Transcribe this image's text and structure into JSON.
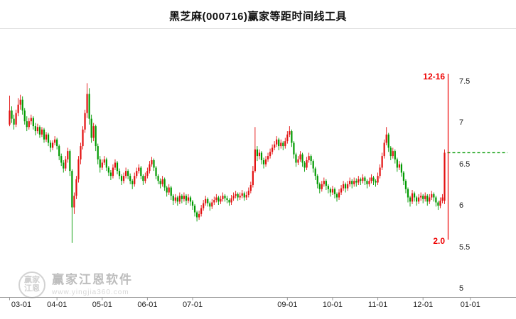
{
  "title": "黑芝麻(000716)赢家等距时间线工具",
  "watermark": {
    "brand": "赢家江恩软件",
    "url": "www.yingjia360.com",
    "logo_line1": "赢家",
    "logo_line2": "江恩"
  },
  "annotations": {
    "date_label": "12-16",
    "value_label": "2.0",
    "marker_color": "#ee0000",
    "target_line_color": "#009900",
    "target_line_value": 6.64
  },
  "colors": {
    "up": "#e31010",
    "down": "#009a00",
    "axis_line": "#9a9a9a",
    "tick_text": "#222222"
  },
  "chart_data": {
    "type": "candlestick",
    "title": "黑芝麻(000716)赢家等距时间线工具",
    "ylim": [
      5,
      7.6
    ],
    "y_ticks": [
      7.5,
      7,
      6.5,
      6,
      5.5,
      5
    ],
    "y_tick_labels": [
      "7.5",
      "7",
      "6.5",
      "6",
      "5.5",
      "5"
    ],
    "x_tick_labels": [
      "03-01",
      "04-01",
      "05-01",
      "06-01",
      "07-01",
      "09-01",
      "10-01",
      "11-01",
      "12-01",
      "01-01"
    ],
    "x_tick_day_index": [
      0,
      22,
      43,
      64,
      85,
      129,
      150,
      171,
      192,
      214
    ],
    "last_candle_date": "12-16",
    "marker_line": {
      "date": "12-16",
      "bottom_label": "2.0"
    },
    "reference_line": {
      "value": 6.64,
      "style": "dashed",
      "color": "#009900"
    },
    "candles": [
      [
        6.98,
        7.33,
        6.96,
        7.15
      ],
      [
        7.15,
        7.2,
        7.0,
        7.05
      ],
      [
        7.05,
        7.1,
        6.92,
        6.98
      ],
      [
        6.98,
        7.16,
        6.95,
        7.12
      ],
      [
        7.12,
        7.3,
        7.08,
        7.22
      ],
      [
        7.22,
        7.34,
        7.16,
        7.28
      ],
      [
        7.28,
        7.32,
        7.1,
        7.15
      ],
      [
        7.15,
        7.18,
        6.98,
        7.02
      ],
      [
        7.02,
        7.08,
        6.9,
        6.95
      ],
      [
        6.95,
        7.06,
        6.92,
        7.02
      ],
      [
        7.02,
        7.1,
        6.98,
        7.06
      ],
      [
        7.06,
        7.08,
        6.92,
        6.96
      ],
      [
        6.96,
        7.0,
        6.85,
        6.9
      ],
      [
        6.9,
        6.99,
        6.87,
        6.95
      ],
      [
        6.95,
        6.97,
        6.82,
        6.86
      ],
      [
        6.86,
        6.95,
        6.83,
        6.92
      ],
      [
        6.92,
        6.94,
        6.76,
        6.8
      ],
      [
        6.8,
        6.89,
        6.77,
        6.86
      ],
      [
        6.86,
        6.88,
        6.72,
        6.76
      ],
      [
        6.76,
        6.79,
        6.65,
        6.7
      ],
      [
        6.7,
        6.79,
        6.67,
        6.76
      ],
      [
        6.76,
        6.84,
        6.73,
        6.8
      ],
      [
        6.8,
        6.82,
        6.68,
        6.72
      ],
      [
        6.72,
        6.74,
        6.55,
        6.6
      ],
      [
        6.6,
        6.63,
        6.48,
        6.52
      ],
      [
        6.52,
        6.55,
        6.4,
        6.45
      ],
      [
        6.45,
        6.6,
        6.42,
        6.56
      ],
      [
        6.56,
        6.7,
        6.52,
        6.66
      ],
      [
        6.66,
        6.68,
        6.36,
        6.42
      ],
      [
        6.42,
        6.44,
        5.55,
        5.98
      ],
      [
        5.98,
        6.16,
        5.9,
        6.12
      ],
      [
        6.12,
        6.36,
        6.08,
        6.32
      ],
      [
        6.32,
        6.6,
        6.28,
        6.56
      ],
      [
        6.56,
        6.76,
        6.5,
        6.72
      ],
      [
        6.72,
        6.96,
        6.68,
        6.92
      ],
      [
        6.92,
        7.16,
        6.88,
        7.12
      ],
      [
        7.12,
        7.48,
        7.06,
        7.35
      ],
      [
        7.35,
        7.42,
        6.98,
        7.05
      ],
      [
        7.05,
        7.1,
        6.76,
        6.82
      ],
      [
        6.82,
        7.0,
        6.78,
        6.96
      ],
      [
        6.96,
        6.98,
        6.66,
        6.72
      ],
      [
        6.72,
        6.75,
        6.5,
        6.56
      ],
      [
        6.56,
        6.6,
        6.4,
        6.46
      ],
      [
        6.46,
        6.56,
        6.43,
        6.52
      ],
      [
        6.52,
        6.6,
        6.49,
        6.56
      ],
      [
        6.56,
        6.58,
        6.42,
        6.46
      ],
      [
        6.46,
        6.48,
        6.36,
        6.4
      ],
      [
        6.4,
        6.43,
        6.31,
        6.36
      ],
      [
        6.36,
        6.5,
        6.33,
        6.46
      ],
      [
        6.46,
        6.56,
        6.43,
        6.52
      ],
      [
        6.52,
        6.54,
        6.38,
        6.42
      ],
      [
        6.42,
        6.45,
        6.32,
        6.36
      ],
      [
        6.36,
        6.38,
        6.25,
        6.3
      ],
      [
        6.3,
        6.4,
        6.27,
        6.36
      ],
      [
        6.36,
        6.46,
        6.33,
        6.42
      ],
      [
        6.42,
        6.44,
        6.32,
        6.36
      ],
      [
        6.36,
        6.39,
        6.26,
        6.3
      ],
      [
        6.3,
        6.32,
        6.2,
        6.26
      ],
      [
        6.26,
        6.4,
        6.23,
        6.36
      ],
      [
        6.36,
        6.46,
        6.33,
        6.42
      ],
      [
        6.42,
        6.5,
        6.39,
        6.46
      ],
      [
        6.46,
        6.48,
        6.32,
        6.36
      ],
      [
        6.36,
        6.38,
        6.25,
        6.3
      ],
      [
        6.3,
        6.4,
        6.27,
        6.36
      ],
      [
        6.36,
        6.46,
        6.33,
        6.42
      ],
      [
        6.42,
        6.54,
        6.39,
        6.5
      ],
      [
        6.5,
        6.59,
        6.47,
        6.55
      ],
      [
        6.55,
        6.57,
        6.42,
        6.46
      ],
      [
        6.46,
        6.48,
        6.32,
        6.36
      ],
      [
        6.36,
        6.38,
        6.26,
        6.3
      ],
      [
        6.3,
        6.33,
        6.21,
        6.26
      ],
      [
        6.26,
        6.36,
        6.23,
        6.32
      ],
      [
        6.32,
        6.34,
        6.18,
        6.22
      ],
      [
        6.22,
        6.24,
        6.11,
        6.16
      ],
      [
        6.16,
        6.26,
        6.13,
        6.22
      ],
      [
        6.22,
        6.24,
        6.07,
        6.12
      ],
      [
        6.12,
        6.14,
        6.01,
        6.06
      ],
      [
        6.06,
        6.14,
        6.03,
        6.1
      ],
      [
        6.1,
        6.12,
        6.0,
        6.05
      ],
      [
        6.05,
        6.16,
        6.02,
        6.12
      ],
      [
        6.12,
        6.14,
        6.03,
        6.08
      ],
      [
        6.08,
        6.16,
        6.05,
        6.12
      ],
      [
        6.12,
        6.14,
        6.01,
        6.06
      ],
      [
        6.06,
        6.14,
        6.03,
        6.1
      ],
      [
        6.1,
        6.12,
        6.0,
        6.05
      ],
      [
        6.05,
        6.07,
        5.95,
        6.0
      ],
      [
        6.0,
        6.02,
        5.87,
        5.92
      ],
      [
        5.92,
        5.94,
        5.81,
        5.86
      ],
      [
        5.86,
        5.94,
        5.83,
        5.9
      ],
      [
        5.9,
        6.01,
        5.87,
        5.97
      ],
      [
        5.97,
        6.07,
        5.94,
        6.03
      ],
      [
        6.03,
        6.12,
        6.0,
        6.08
      ],
      [
        6.08,
        6.1,
        5.99,
        6.03
      ],
      [
        6.03,
        6.05,
        5.94,
        5.99
      ],
      [
        5.99,
        6.08,
        5.96,
        6.04
      ],
      [
        6.04,
        6.11,
        6.01,
        6.07
      ],
      [
        6.07,
        6.14,
        6.04,
        6.1
      ],
      [
        6.1,
        6.12,
        6.01,
        6.05
      ],
      [
        6.05,
        6.12,
        6.02,
        6.08
      ],
      [
        6.08,
        6.16,
        6.05,
        6.12
      ],
      [
        6.12,
        6.14,
        6.05,
        6.09
      ],
      [
        6.09,
        6.12,
        6.03,
        6.07
      ],
      [
        6.07,
        6.09,
        6.0,
        6.04
      ],
      [
        6.04,
        6.13,
        6.01,
        6.09
      ],
      [
        6.09,
        6.16,
        6.06,
        6.12
      ],
      [
        6.12,
        6.18,
        6.09,
        6.14
      ],
      [
        6.14,
        6.16,
        6.06,
        6.1
      ],
      [
        6.1,
        6.16,
        6.07,
        6.12
      ],
      [
        6.12,
        6.19,
        6.09,
        6.15
      ],
      [
        6.15,
        6.17,
        6.06,
        6.1
      ],
      [
        6.1,
        6.17,
        6.07,
        6.13
      ],
      [
        6.13,
        6.22,
        6.1,
        6.18
      ],
      [
        6.18,
        6.29,
        6.15,
        6.25
      ],
      [
        6.25,
        6.48,
        6.22,
        6.42
      ],
      [
        6.42,
        6.95,
        6.4,
        6.68
      ],
      [
        6.68,
        6.72,
        6.54,
        6.6
      ],
      [
        6.6,
        6.68,
        6.56,
        6.64
      ],
      [
        6.64,
        6.66,
        6.5,
        6.55
      ],
      [
        6.55,
        6.58,
        6.45,
        6.5
      ],
      [
        6.5,
        6.6,
        6.47,
        6.56
      ],
      [
        6.56,
        6.64,
        6.53,
        6.6
      ],
      [
        6.6,
        6.69,
        6.57,
        6.65
      ],
      [
        6.65,
        6.74,
        6.62,
        6.7
      ],
      [
        6.7,
        6.78,
        6.67,
        6.74
      ],
      [
        6.74,
        6.84,
        6.71,
        6.8
      ],
      [
        6.8,
        6.82,
        6.67,
        6.72
      ],
      [
        6.72,
        6.8,
        6.69,
        6.76
      ],
      [
        6.76,
        6.78,
        6.67,
        6.72
      ],
      [
        6.72,
        6.82,
        6.69,
        6.78
      ],
      [
        6.78,
        6.9,
        6.75,
        6.86
      ],
      [
        6.86,
        6.96,
        6.83,
        6.9
      ],
      [
        6.9,
        6.92,
        6.71,
        6.76
      ],
      [
        6.76,
        6.78,
        6.57,
        6.62
      ],
      [
        6.62,
        6.64,
        6.47,
        6.52
      ],
      [
        6.52,
        6.6,
        6.49,
        6.56
      ],
      [
        6.56,
        6.66,
        6.53,
        6.62
      ],
      [
        6.62,
        6.64,
        6.47,
        6.52
      ],
      [
        6.52,
        6.54,
        6.41,
        6.46
      ],
      [
        6.46,
        6.59,
        6.43,
        6.55
      ],
      [
        6.55,
        6.64,
        6.52,
        6.6
      ],
      [
        6.6,
        6.62,
        6.49,
        6.54
      ],
      [
        6.54,
        6.56,
        6.4,
        6.45
      ],
      [
        6.45,
        6.47,
        6.31,
        6.36
      ],
      [
        6.36,
        6.38,
        6.21,
        6.26
      ],
      [
        6.26,
        6.28,
        6.15,
        6.2
      ],
      [
        6.2,
        6.3,
        6.17,
        6.26
      ],
      [
        6.26,
        6.34,
        6.23,
        6.3
      ],
      [
        6.3,
        6.32,
        6.19,
        6.24
      ],
      [
        6.24,
        6.26,
        6.15,
        6.2
      ],
      [
        6.2,
        6.22,
        6.11,
        6.16
      ],
      [
        6.16,
        6.24,
        6.13,
        6.2
      ],
      [
        6.2,
        6.22,
        6.09,
        6.14
      ],
      [
        6.14,
        6.16,
        6.05,
        6.1
      ],
      [
        6.1,
        6.2,
        6.07,
        6.16
      ],
      [
        6.16,
        6.25,
        6.13,
        6.21
      ],
      [
        6.21,
        6.3,
        6.18,
        6.26
      ],
      [
        6.26,
        6.28,
        6.16,
        6.21
      ],
      [
        6.21,
        6.3,
        6.18,
        6.26
      ],
      [
        6.26,
        6.34,
        6.23,
        6.3
      ],
      [
        6.3,
        6.32,
        6.21,
        6.26
      ],
      [
        6.26,
        6.34,
        6.23,
        6.3
      ],
      [
        6.3,
        6.33,
        6.23,
        6.28
      ],
      [
        6.28,
        6.36,
        6.25,
        6.32
      ],
      [
        6.32,
        6.34,
        6.25,
        6.3
      ],
      [
        6.3,
        6.38,
        6.27,
        6.34
      ],
      [
        6.34,
        6.36,
        6.25,
        6.3
      ],
      [
        6.3,
        6.32,
        6.21,
        6.26
      ],
      [
        6.26,
        6.34,
        6.23,
        6.3
      ],
      [
        6.3,
        6.38,
        6.27,
        6.34
      ],
      [
        6.34,
        6.36,
        6.25,
        6.3
      ],
      [
        6.3,
        6.32,
        6.23,
        6.28
      ],
      [
        6.28,
        6.4,
        6.25,
        6.36
      ],
      [
        6.36,
        6.5,
        6.33,
        6.46
      ],
      [
        6.46,
        6.64,
        6.43,
        6.6
      ],
      [
        6.6,
        6.8,
        6.57,
        6.76
      ],
      [
        6.76,
        6.95,
        6.73,
        6.86
      ],
      [
        6.86,
        6.88,
        6.65,
        6.7
      ],
      [
        6.7,
        6.72,
        6.55,
        6.6
      ],
      [
        6.6,
        6.7,
        6.57,
        6.66
      ],
      [
        6.66,
        6.68,
        6.51,
        6.56
      ],
      [
        6.56,
        6.58,
        6.41,
        6.46
      ],
      [
        6.46,
        6.54,
        6.43,
        6.5
      ],
      [
        6.5,
        6.52,
        6.35,
        6.4
      ],
      [
        6.4,
        6.42,
        6.25,
        6.3
      ],
      [
        6.3,
        6.32,
        6.15,
        6.2
      ],
      [
        6.2,
        6.22,
        6.04,
        6.1
      ],
      [
        6.1,
        6.12,
        5.99,
        6.05
      ],
      [
        6.05,
        6.19,
        6.02,
        6.15
      ],
      [
        6.15,
        6.17,
        6.05,
        6.1
      ],
      [
        6.1,
        6.12,
        6.0,
        6.05
      ],
      [
        6.05,
        6.14,
        6.02,
        6.1
      ],
      [
        6.1,
        6.16,
        6.06,
        6.12
      ],
      [
        6.12,
        6.14,
        6.03,
        6.08
      ],
      [
        6.08,
        6.16,
        6.05,
        6.12
      ],
      [
        6.12,
        6.14,
        6.0,
        6.05
      ],
      [
        6.05,
        6.14,
        6.02,
        6.1
      ],
      [
        6.1,
        6.18,
        6.07,
        6.14
      ],
      [
        6.14,
        6.16,
        6.05,
        6.1
      ],
      [
        6.1,
        6.12,
        5.99,
        6.04
      ],
      [
        6.04,
        6.06,
        5.95,
        6.0
      ],
      [
        6.0,
        6.1,
        5.97,
        6.06
      ],
      [
        6.06,
        6.14,
        6.03,
        6.1
      ],
      [
        6.06,
        6.68,
        6.02,
        6.64
      ]
    ]
  }
}
